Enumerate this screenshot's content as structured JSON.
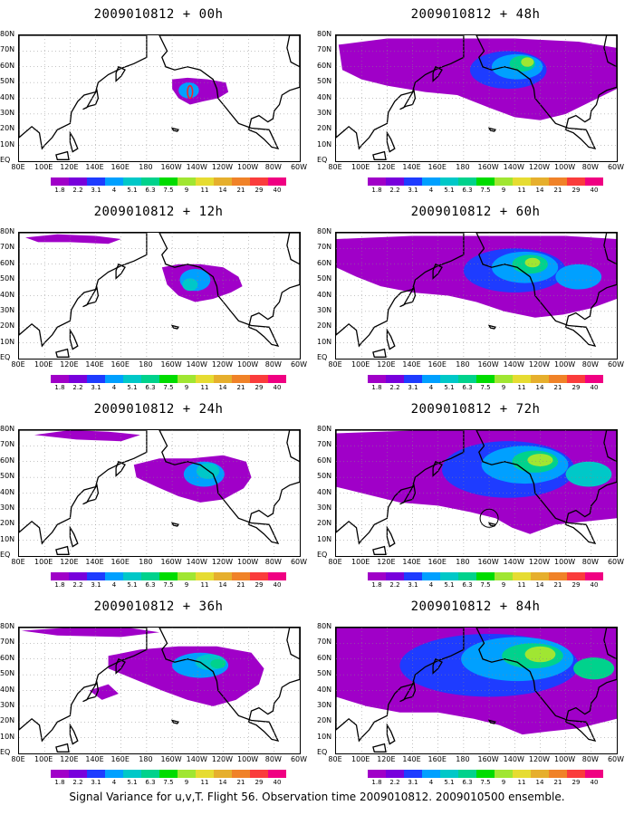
{
  "caption": "Signal Variance for u,v,T. Flight 56. Observation time 2009010812. 2009010500 ensemble.",
  "lat_labels": [
    "80N",
    "70N",
    "60N",
    "50N",
    "40N",
    "30N",
    "20N",
    "10N",
    "EQ"
  ],
  "lon_labels": [
    "80E",
    "100E",
    "120E",
    "140E",
    "160E",
    "180",
    "160W",
    "140W",
    "120W",
    "100W",
    "80W",
    "60W"
  ],
  "colorbar": {
    "ticks": [
      "1.8",
      "2.2",
      "3.1",
      "4",
      "5.1",
      "6.3",
      "7.5",
      "9",
      "11",
      "14",
      "21",
      "29",
      "40"
    ],
    "colors": [
      "#a000c8",
      "#7800dc",
      "#1e3cff",
      "#00a0ff",
      "#00c8c8",
      "#00d28c",
      "#00dc00",
      "#a0e632",
      "#e6dc32",
      "#e6af2d",
      "#f08228",
      "#fa3c3c",
      "#f00082"
    ]
  },
  "chart_data": [
    {
      "type": "heatmap",
      "title": "2009010812 + 00h",
      "forecast_hour": 0,
      "contours_max_level": "5.1"
    },
    {
      "type": "heatmap",
      "title": "2009010812 + 12h",
      "forecast_hour": 12,
      "contours_max_level": "5.1"
    },
    {
      "type": "heatmap",
      "title": "2009010812 + 24h",
      "forecast_hour": 24,
      "contours_max_level": "5.1"
    },
    {
      "type": "heatmap",
      "title": "2009010812 + 36h",
      "forecast_hour": 36,
      "contours_max_level": "6.3"
    },
    {
      "type": "heatmap",
      "title": "2009010812 + 48h",
      "forecast_hour": 48,
      "contours_max_level": "9"
    },
    {
      "type": "heatmap",
      "title": "2009010812 + 60h",
      "forecast_hour": 60,
      "contours_max_level": "11"
    },
    {
      "type": "heatmap",
      "title": "2009010812 + 72h",
      "forecast_hour": 72,
      "contours_max_level": "14"
    },
    {
      "type": "heatmap",
      "title": "2009010812 + 84h",
      "forecast_hour": 84,
      "contours_max_level": "14"
    }
  ]
}
